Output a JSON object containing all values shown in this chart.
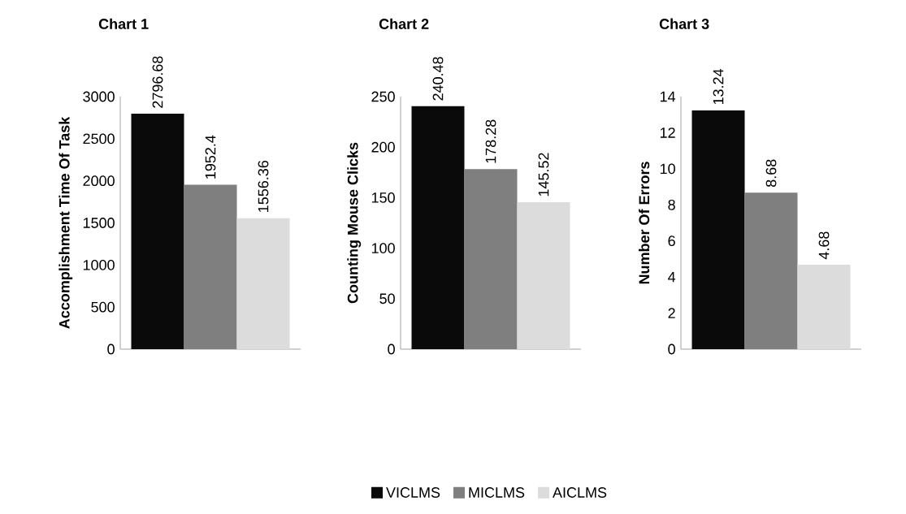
{
  "chart_data": [
    {
      "type": "bar",
      "title": "Chart 1",
      "ylabel": "Accomplishment Time Of Task",
      "categories": [
        null
      ],
      "series": [
        {
          "color": "#0a0a0a",
          "values": [
            2796.68
          ]
        },
        {
          "color": "#7f7f7f",
          "values": [
            1952.4
          ]
        },
        {
          "color": "#dcdcdc",
          "values": [
            1556.36
          ]
        }
      ],
      "ylim": [
        0,
        3000
      ],
      "yticks": [
        0,
        500,
        1000,
        1500,
        2000,
        2500,
        3000
      ],
      "data_labels": true
    },
    {
      "type": "bar",
      "title": "Chart 2",
      "ylabel": "Counting Mouse Clicks",
      "categories": [
        null
      ],
      "series": [
        {
          "name": "VICLMS",
          "color": "#0a0a0a",
          "values": [
            240.48
          ]
        },
        {
          "name": "MICLMS",
          "color": "#7f7f7f",
          "values": [
            178.28
          ]
        },
        {
          "name": "AICLMS",
          "color": "#dcdcdc",
          "values": [
            145.52
          ]
        }
      ],
      "ylim": [
        0,
        250
      ],
      "yticks": [
        0,
        50,
        100,
        150,
        200,
        250
      ],
      "data_labels": true,
      "legend": "bottom"
    },
    {
      "type": "bar",
      "title": "Chart 3",
      "ylabel": "Number Of Errors",
      "categories": [
        null
      ],
      "series": [
        {
          "color": "#0a0a0a",
          "values": [
            13.24
          ]
        },
        {
          "color": "#7f7f7f",
          "values": [
            8.68
          ]
        },
        {
          "color": "#dcdcdc",
          "values": [
            4.68
          ]
        }
      ],
      "ylim": [
        0,
        14
      ],
      "yticks": [
        0,
        2,
        4,
        6,
        8,
        10,
        12,
        14
      ],
      "data_labels": true
    }
  ]
}
